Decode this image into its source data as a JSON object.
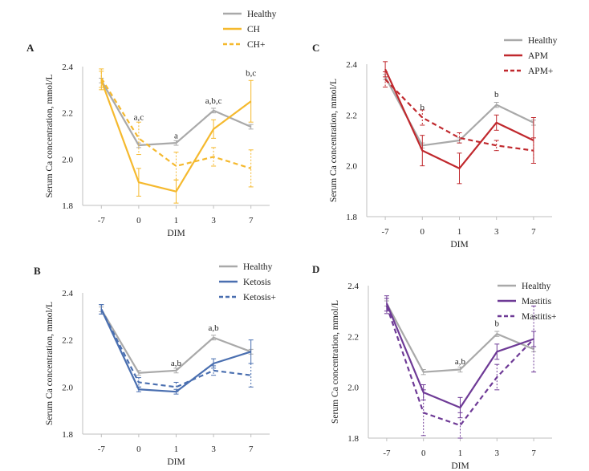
{
  "chart_data": [
    {
      "type": "line",
      "panel": "A",
      "categories": [
        "-7",
        "0",
        "1",
        "3",
        "7"
      ],
      "xlabel": "DIM",
      "ylabel": "Serum Ca concentration, mmol/L",
      "ylim": [
        1.8,
        2.4
      ],
      "yticks": [
        "1.8",
        "2.0",
        "2.2",
        "2.4"
      ],
      "legend_position": "top-center",
      "series": [
        {
          "name": "Healthy",
          "color": "#a9a9a9",
          "dash": "solid",
          "values": [
            2.34,
            2.06,
            2.07,
            2.21,
            2.14
          ],
          "err": [
            0.01,
            0.01,
            0.01,
            0.01,
            0.01
          ]
        },
        {
          "name": "CH",
          "color": "#f5b92e",
          "dash": "solid",
          "values": [
            2.34,
            1.9,
            1.86,
            2.13,
            2.25
          ],
          "err": [
            0.04,
            0.06,
            0.05,
            0.04,
            0.09
          ]
        },
        {
          "name": "CH+",
          "color": "#f5b92e",
          "dash": "dashed",
          "values": [
            2.35,
            2.09,
            1.97,
            2.01,
            1.96
          ],
          "err": [
            0.04,
            0.07,
            0.06,
            0.04,
            0.08
          ]
        }
      ],
      "annotations": [
        {
          "category": "0",
          "text": "a,c",
          "y": 2.17
        },
        {
          "category": "1",
          "text": "a",
          "y": 2.09
        },
        {
          "category": "3",
          "text": "a,b,c",
          "y": 2.24
        },
        {
          "category": "7",
          "text": "b,c",
          "y": 2.36
        }
      ]
    },
    {
      "type": "line",
      "panel": "B",
      "categories": [
        "-7",
        "0",
        "1",
        "3",
        "7"
      ],
      "xlabel": "DIM",
      "ylabel": "Serum Ca concentration, mmol/L",
      "ylim": [
        1.8,
        2.4
      ],
      "yticks": [
        "1.8",
        "2.0",
        "2.2",
        "2.4"
      ],
      "legend_position": "top-center",
      "series": [
        {
          "name": "Healthy",
          "color": "#a9a9a9",
          "dash": "solid",
          "values": [
            2.33,
            2.06,
            2.07,
            2.21,
            2.15
          ],
          "err": [
            0.01,
            0.01,
            0.01,
            0.01,
            0.01
          ]
        },
        {
          "name": "Ketosis",
          "color": "#4a6fb0",
          "dash": "solid",
          "values": [
            2.33,
            1.99,
            1.98,
            2.1,
            2.15
          ],
          "err": [
            0.02,
            0.01,
            0.01,
            0.02,
            0.05
          ]
        },
        {
          "name": "Ketosis+",
          "color": "#4a6fb0",
          "dash": "dashed",
          "values": [
            2.33,
            2.02,
            2.0,
            2.07,
            2.05
          ],
          "err": [
            0.02,
            0.02,
            0.02,
            0.02,
            0.05
          ]
        }
      ],
      "annotations": [
        {
          "category": "1",
          "text": "a,b",
          "y": 2.09
        },
        {
          "category": "3",
          "text": "a,b",
          "y": 2.24
        }
      ]
    },
    {
      "type": "line",
      "panel": "C",
      "categories": [
        "-7",
        "0",
        "1",
        "3",
        "7"
      ],
      "xlabel": "DIM",
      "ylabel": "Serum Ca concentration, mmol/L",
      "ylim": [
        1.8,
        2.4
      ],
      "yticks": [
        "1.8",
        "2.0",
        "2.2",
        "2.4"
      ],
      "legend_position": "top-center",
      "series": [
        {
          "name": "Healthy",
          "color": "#a9a9a9",
          "dash": "solid",
          "values": [
            2.35,
            2.08,
            2.1,
            2.24,
            2.17
          ],
          "err": [
            0.01,
            0.01,
            0.01,
            0.01,
            0.01
          ]
        },
        {
          "name": "APM",
          "color": "#c0282d",
          "dash": "solid",
          "values": [
            2.38,
            2.06,
            1.99,
            2.17,
            2.1
          ],
          "err": [
            0.03,
            0.06,
            0.06,
            0.03,
            0.09
          ]
        },
        {
          "name": "APM+",
          "color": "#c0282d",
          "dash": "dashed",
          "values": [
            2.34,
            2.19,
            2.11,
            2.08,
            2.06
          ],
          "err": [
            0.03,
            0.03,
            0.02,
            0.02,
            0.05
          ]
        }
      ],
      "annotations": [
        {
          "category": "0",
          "text": "b",
          "y": 2.22
        },
        {
          "category": "3",
          "text": "b",
          "y": 2.27
        }
      ]
    },
    {
      "type": "line",
      "panel": "D",
      "categories": [
        "-7",
        "0",
        "1",
        "3",
        "7"
      ],
      "xlabel": "DIM",
      "ylabel": "Serum Ca concentration, mmol/L",
      "ylim": [
        1.8,
        2.4
      ],
      "yticks": [
        "1.8",
        "2.0",
        "2.2",
        "2.4"
      ],
      "legend_position": "top-center",
      "series": [
        {
          "name": "Healthy",
          "color": "#a9a9a9",
          "dash": "solid",
          "values": [
            2.33,
            2.06,
            2.07,
            2.21,
            2.15
          ],
          "err": [
            0.01,
            0.01,
            0.01,
            0.01,
            0.01
          ]
        },
        {
          "name": "Mastitis",
          "color": "#6e3a96",
          "dash": "solid",
          "values": [
            2.33,
            1.98,
            1.92,
            2.14,
            2.19
          ],
          "err": [
            0.03,
            0.03,
            0.04,
            0.03,
            0.03
          ]
        },
        {
          "name": "Mastitis+",
          "color": "#6e3a96",
          "dash": "dashed",
          "values": [
            2.32,
            1.9,
            1.85,
            2.04,
            2.19
          ],
          "err": [
            0.03,
            0.09,
            0.05,
            0.05,
            0.13
          ]
        }
      ],
      "annotations": [
        {
          "category": "1",
          "text": "a,b",
          "y": 2.09
        },
        {
          "category": "3",
          "text": "b",
          "y": 2.24
        }
      ]
    }
  ]
}
